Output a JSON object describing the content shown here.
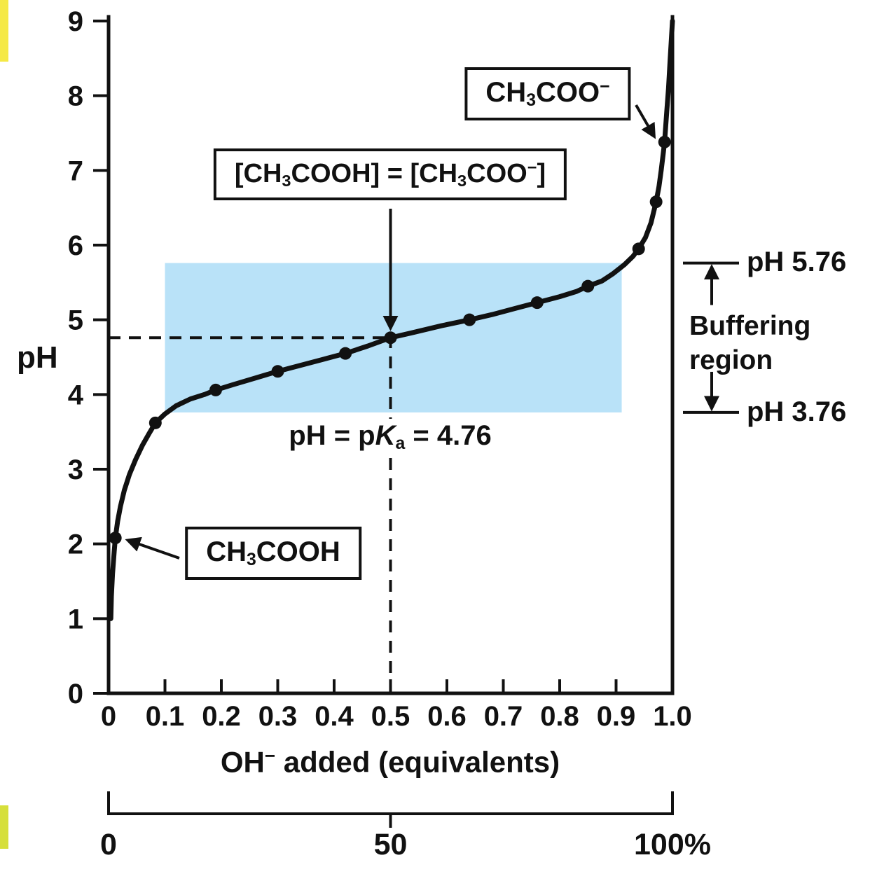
{
  "colors": {
    "curve": "#111111",
    "axis": "#111111",
    "buffer_fill": "#b9e2f8",
    "background": "#ffffff",
    "artifact_yellow": "#f5e945",
    "artifact_green": "#d6df3b"
  },
  "labels": {
    "ylabel": "pH",
    "xlabel_formula": "OH^- added (equivalents)",
    "acetate_box": "CH_3COO^-",
    "equal_box": "[CH_3COOH] = [CH_3COO^-]",
    "acid_box": "CH_3COOH",
    "pka_prefix": "pH = p",
    "pka_k": "K",
    "pka_sub": "a",
    "pka_suffix": " = 4.76",
    "ph_high": "pH 5.76",
    "ph_low": "pH 3.76",
    "buffering_line1": "Buffering",
    "buffering_line2": "region"
  },
  "chart_data": {
    "type": "line",
    "xlabel": "OH⁻ added (equivalents)",
    "ylabel": "pH",
    "xlim": [
      0,
      1.0
    ],
    "ylim": [
      0,
      9
    ],
    "grid": false,
    "x_ticks": [
      0,
      0.1,
      0.2,
      0.3,
      0.4,
      0.5,
      0.6,
      0.7,
      0.8,
      0.9,
      1.0
    ],
    "x_tick_labels": [
      "0",
      "0.1",
      "0.2",
      "0.3",
      "0.4",
      "0.5",
      "0.6",
      "0.7",
      "0.8",
      "0.9",
      "1.0"
    ],
    "y_ticks": [
      0,
      1,
      2,
      3,
      4,
      5,
      6,
      7,
      8,
      9
    ],
    "y_tick_labels": [
      "0",
      "1",
      "2",
      "3",
      "4",
      "5",
      "6",
      "7",
      "8",
      "9"
    ],
    "percent_axis": {
      "ticks": [
        0,
        50,
        100
      ],
      "labels": [
        "0",
        "50",
        "100%"
      ]
    },
    "pka": 4.76,
    "midpoint": {
      "x": 0.5,
      "ph": 4.76
    },
    "buffering_region": {
      "x0": 0.1,
      "x1": 0.91,
      "ph_low": 3.76,
      "ph_high": 5.76
    },
    "curve": [
      [
        0.004,
        1.0
      ],
      [
        0.005,
        1.3
      ],
      [
        0.007,
        1.6
      ],
      [
        0.01,
        1.9
      ],
      [
        0.012,
        2.08
      ],
      [
        0.016,
        2.3
      ],
      [
        0.021,
        2.5
      ],
      [
        0.028,
        2.72
      ],
      [
        0.037,
        2.93
      ],
      [
        0.048,
        3.13
      ],
      [
        0.06,
        3.32
      ],
      [
        0.072,
        3.48
      ],
      [
        0.083,
        3.62
      ],
      [
        0.1,
        3.74
      ],
      [
        0.12,
        3.85
      ],
      [
        0.145,
        3.94
      ],
      [
        0.17,
        4.0
      ],
      [
        0.19,
        4.06
      ],
      [
        0.22,
        4.13
      ],
      [
        0.26,
        4.22
      ],
      [
        0.3,
        4.31
      ],
      [
        0.34,
        4.39
      ],
      [
        0.38,
        4.47
      ],
      [
        0.42,
        4.55
      ],
      [
        0.46,
        4.65
      ],
      [
        0.5,
        4.76
      ],
      [
        0.54,
        4.83
      ],
      [
        0.59,
        4.92
      ],
      [
        0.64,
        5.0
      ],
      [
        0.68,
        5.07
      ],
      [
        0.72,
        5.15
      ],
      [
        0.76,
        5.23
      ],
      [
        0.8,
        5.31
      ],
      [
        0.83,
        5.38
      ],
      [
        0.85,
        5.45
      ],
      [
        0.875,
        5.52
      ],
      [
        0.895,
        5.62
      ],
      [
        0.915,
        5.74
      ],
      [
        0.93,
        5.85
      ],
      [
        0.94,
        5.95
      ],
      [
        0.952,
        6.1
      ],
      [
        0.962,
        6.3
      ],
      [
        0.971,
        6.58
      ],
      [
        0.976,
        6.78
      ],
      [
        0.98,
        7.0
      ],
      [
        0.984,
        7.25
      ],
      [
        0.986,
        7.38
      ],
      [
        0.99,
        7.8
      ],
      [
        0.993,
        8.1
      ],
      [
        0.996,
        8.5
      ],
      [
        0.998,
        8.75
      ],
      [
        1.0,
        9.0
      ]
    ],
    "points": [
      [
        0.012,
        2.08
      ],
      [
        0.083,
        3.62
      ],
      [
        0.19,
        4.06
      ],
      [
        0.3,
        4.31
      ],
      [
        0.42,
        4.55
      ],
      [
        0.5,
        4.76
      ],
      [
        0.64,
        5.0
      ],
      [
        0.76,
        5.23
      ],
      [
        0.85,
        5.45
      ],
      [
        0.94,
        5.95
      ],
      [
        0.971,
        6.58
      ],
      [
        0.986,
        7.38
      ]
    ]
  }
}
